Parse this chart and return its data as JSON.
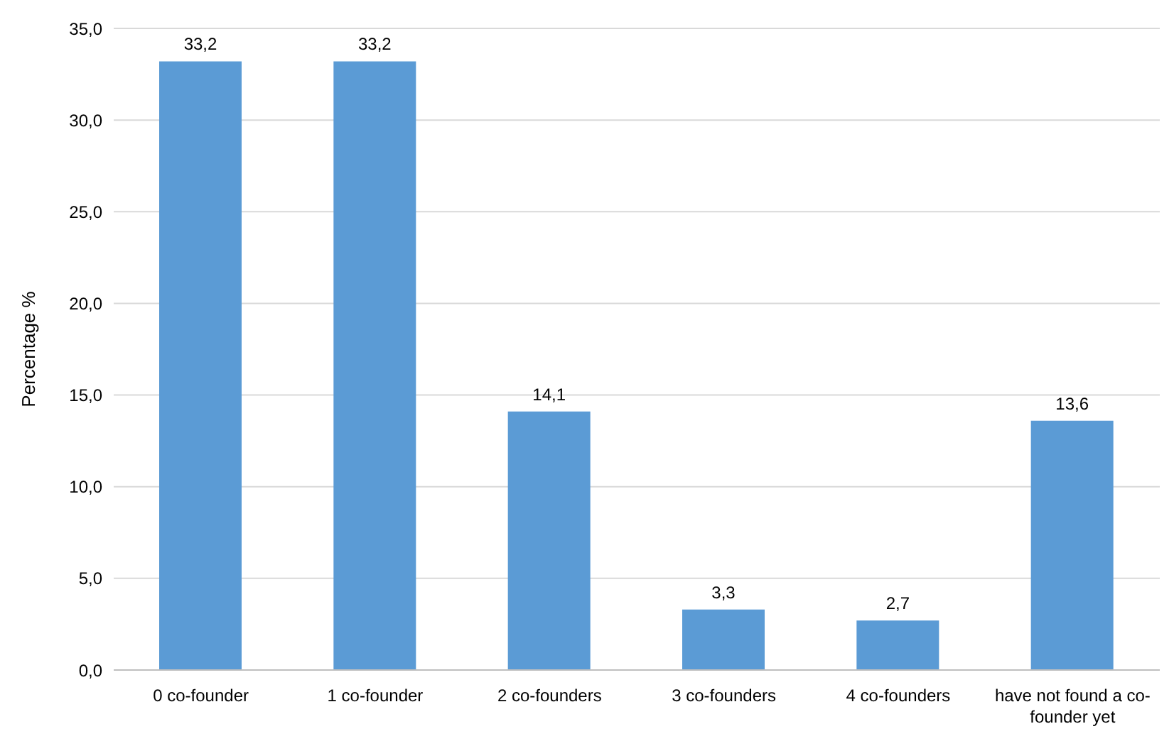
{
  "chart_data": {
    "type": "bar",
    "ylabel": "Percentage %",
    "categories": [
      "0 co-founder",
      "1 co-founder",
      "2 co-founders",
      "3 co-founders",
      "4 co-founders",
      "have not found a co-founder yet"
    ],
    "values": [
      33.2,
      33.2,
      14.1,
      3.3,
      2.7,
      13.6
    ],
    "value_labels": [
      "33,2",
      "33,2",
      "14,1",
      "3,3",
      "2,7",
      "13,6"
    ],
    "color": "#5b9bd5",
    "ylim": [
      0,
      35
    ],
    "yticks": [
      {
        "value": 0,
        "label": "0,0"
      },
      {
        "value": 5,
        "label": "5,0"
      },
      {
        "value": 10,
        "label": "10,0"
      },
      {
        "value": 15,
        "label": "15,0"
      },
      {
        "value": 20,
        "label": "20,0"
      },
      {
        "value": 25,
        "label": "25,0"
      },
      {
        "value": 30,
        "label": "30,0"
      },
      {
        "value": 35,
        "label": "35,0"
      }
    ],
    "grid": "y"
  }
}
